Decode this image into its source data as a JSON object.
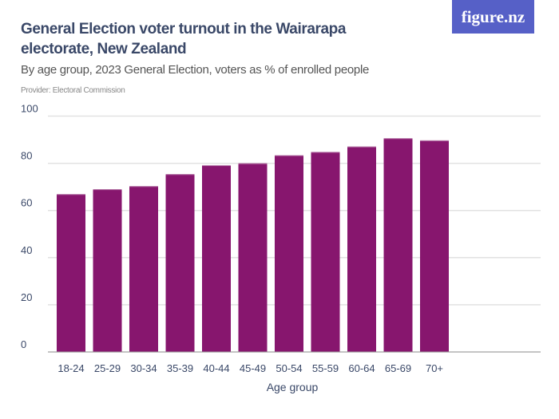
{
  "header": {
    "title": "General Election voter turnout in the Wairarapa electorate, New Zealand",
    "subtitle": "By age group, 2023 General Election, voters as % of enrolled people",
    "provider": "Provider: Electoral Commission",
    "logo": "figure.nz"
  },
  "chart_data": {
    "type": "bar",
    "title": "General Election voter turnout in the Wairarapa electorate, New Zealand",
    "subtitle": "By age group, 2023 General Election, voters as % of enrolled people",
    "xlabel": "Age group",
    "ylabel": "",
    "ylim": [
      0,
      100
    ],
    "yticks": [
      0,
      20,
      40,
      60,
      80,
      100
    ],
    "grid": true,
    "color": "#87166e",
    "categories": [
      "18-24",
      "25-29",
      "30-34",
      "35-39",
      "40-44",
      "45-49",
      "50-54",
      "55-59",
      "60-64",
      "65-69",
      "70+"
    ],
    "values": [
      66.9,
      69.0,
      70.3,
      75.4,
      79.2,
      80.0,
      83.4,
      84.8,
      87.1,
      90.6,
      89.7
    ]
  }
}
